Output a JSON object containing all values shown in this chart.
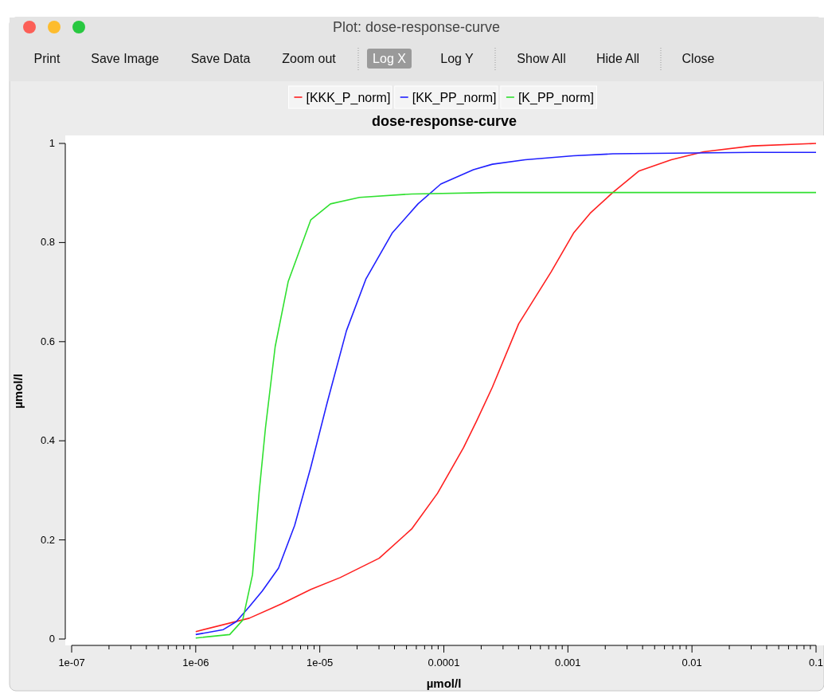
{
  "chart_data": {
    "type": "line",
    "title": "dose-response-curve",
    "xlabel": "µmol/l",
    "ylabel": "µmol/l",
    "annotations": [
      "Plot: dose-response-curve",
      "Print",
      "Save Image",
      "Save Data",
      "Zoom out",
      "Log X",
      "Log Y",
      "Show All",
      "Hide All",
      "Close"
    ],
    "log": "x",
    "legend": "top",
    "grid": false,
    "xlim": [
      1e-07,
      0.1
    ],
    "ylim": [
      0,
      1
    ],
    "xticks": [
      {
        "value": 1e-07,
        "label": "1e-07"
      },
      {
        "value": 2e-07,
        "label": null
      },
      {
        "value": 3e-07,
        "label": null
      },
      {
        "value": 4e-07,
        "label": null
      },
      {
        "value": 5e-07,
        "label": null
      },
      {
        "value": 6e-07,
        "label": null
      },
      {
        "value": 7e-07,
        "label": null
      },
      {
        "value": 8e-07,
        "label": null
      },
      {
        "value": 9e-07,
        "label": null
      },
      {
        "value": 1e-06,
        "label": "1e-06"
      },
      {
        "value": 2e-06,
        "label": null
      },
      {
        "value": 3e-06,
        "label": null
      },
      {
        "value": 4e-06,
        "label": null
      },
      {
        "value": 5e-06,
        "label": null
      },
      {
        "value": 6e-06,
        "label": null
      },
      {
        "value": 7e-06,
        "label": null
      },
      {
        "value": 8e-06,
        "label": null
      },
      {
        "value": 9e-06,
        "label": null
      },
      {
        "value": 1e-05,
        "label": "1e-05"
      },
      {
        "value": 2e-05,
        "label": null
      },
      {
        "value": 3e-05,
        "label": null
      },
      {
        "value": 4e-05,
        "label": null
      },
      {
        "value": 5e-05,
        "label": null
      },
      {
        "value": 6e-05,
        "label": null
      },
      {
        "value": 7e-05,
        "label": null
      },
      {
        "value": 8e-05,
        "label": null
      },
      {
        "value": 9e-05,
        "label": null
      },
      0.0001,
      {
        "value": 0.0002,
        "label": null
      },
      {
        "value": 0.0003,
        "label": null
      },
      {
        "value": 0.0004,
        "label": null
      },
      {
        "value": 0.0005,
        "label": null
      },
      {
        "value": 0.0006,
        "label": null
      },
      {
        "value": 0.0007,
        "label": null
      },
      {
        "value": 0.0008,
        "label": null
      },
      {
        "value": 0.0009,
        "label": null
      },
      0.001,
      {
        "value": 0.002,
        "label": null
      },
      {
        "value": 0.003,
        "label": null
      },
      {
        "value": 0.004,
        "label": null
      },
      {
        "value": 0.005,
        "label": null
      },
      {
        "value": 0.006,
        "label": null
      },
      {
        "value": 0.007,
        "label": null
      },
      {
        "value": 0.008,
        "label": null
      },
      {
        "value": 0.009,
        "label": null
      },
      0.01,
      {
        "value": 0.02,
        "label": null
      },
      {
        "value": 0.03,
        "label": null
      },
      {
        "value": 0.04,
        "label": null
      },
      {
        "value": 0.05,
        "label": null
      },
      {
        "value": 0.06,
        "label": null
      },
      {
        "value": 0.07,
        "label": null
      },
      {
        "value": 0.08,
        "label": null
      },
      {
        "value": 0.09,
        "label": null
      },
      0.1
    ],
    "yticks": [
      0,
      0.2,
      0.4,
      0.6,
      0.8,
      1
    ],
    "series": [
      {
        "name": "[KKK_P_norm]",
        "color": "#ff2020",
        "x": [
          1e-06,
          2.7e-06,
          4.93e-06,
          8.47e-06,
          1.46e-05,
          3.01e-05,
          5.5e-05,
          8.89e-05,
          0.000144,
          0.000183,
          0.000246,
          0.000401,
          0.000733,
          0.00111,
          0.00151,
          0.0023,
          0.00372,
          0.00681,
          0.0124,
          0.0307,
          0.1
        ],
        "values": [
          0.015,
          0.042,
          0.071,
          0.1,
          0.124,
          0.163,
          0.222,
          0.294,
          0.386,
          0.439,
          0.508,
          0.636,
          0.741,
          0.819,
          0.859,
          0.901,
          0.944,
          0.967,
          0.983,
          0.995,
          1.0
        ]
      },
      {
        "name": "[KK_PP_norm]",
        "color": "#2020ff",
        "x": [
          1e-06,
          1.67e-06,
          2.12e-06,
          2.7e-06,
          3.44e-06,
          4.65e-06,
          6.27e-06,
          8.47e-06,
          1.15e-05,
          1.64e-05,
          2.36e-05,
          3.83e-05,
          6.19e-05,
          9.44e-05,
          0.000173,
          0.000246,
          0.000452,
          0.00111,
          0.0023,
          0.0307,
          0.1
        ],
        "values": [
          0.009,
          0.019,
          0.035,
          0.065,
          0.097,
          0.143,
          0.229,
          0.347,
          0.478,
          0.622,
          0.727,
          0.819,
          0.878,
          0.918,
          0.947,
          0.958,
          0.967,
          0.975,
          0.979,
          0.982,
          0.982
        ]
      },
      {
        "name": "[K_PP_norm]",
        "color": "#30e030",
        "x": [
          1e-06,
          1.88e-06,
          2.39e-06,
          2.87e-06,
          3.24e-06,
          3.65e-06,
          4.37e-06,
          5.56e-06,
          8.47e-06,
          1.22e-05,
          2.09e-05,
          5.5e-05,
          0.000246,
          0.1
        ],
        "values": [
          0.002,
          0.009,
          0.038,
          0.13,
          0.294,
          0.426,
          0.59,
          0.721,
          0.846,
          0.878,
          0.891,
          0.898,
          0.901,
          0.901
        ]
      }
    ]
  }
}
